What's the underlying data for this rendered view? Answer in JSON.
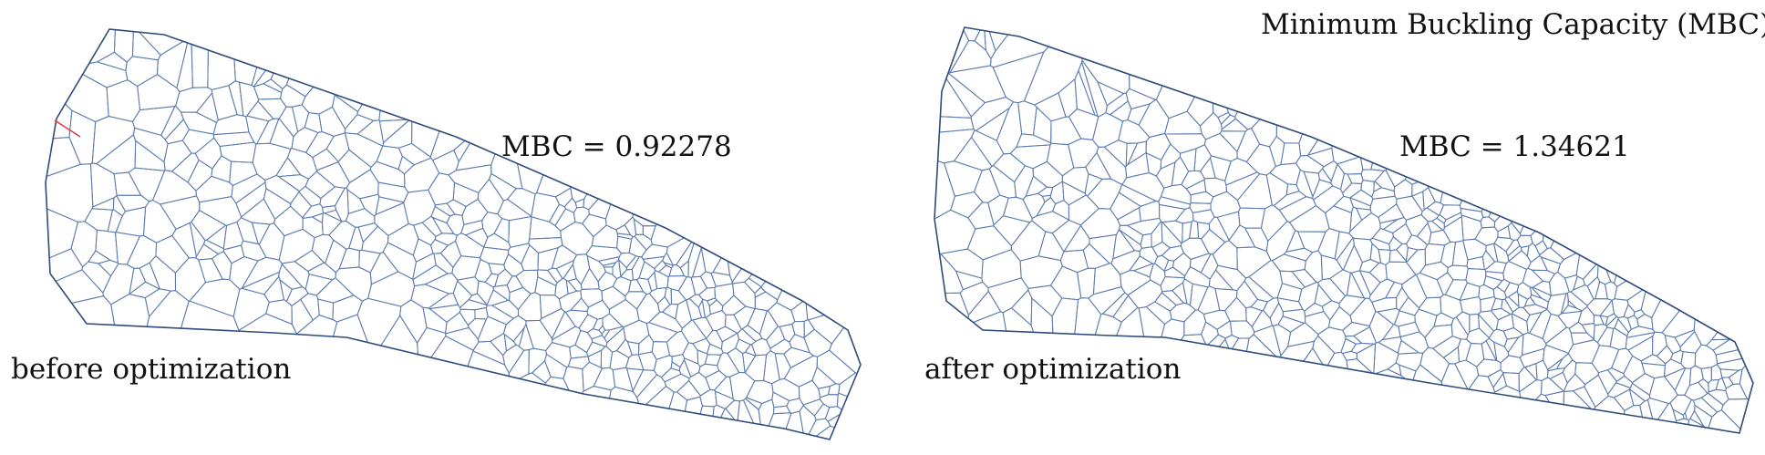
{
  "figure": {
    "title": "Minimum Buckling Capacity (MBC)",
    "colors": {
      "mesh": "#5b7bb0",
      "outline": "#2f4c7d",
      "highlight": "#e23b3b",
      "background": "#ffffff"
    }
  },
  "panels": [
    {
      "caption": "before optimization",
      "mbc_label": "MBC = 0.92278",
      "mbc_value": 0.92278
    },
    {
      "caption": "after optimization",
      "mbc_label": "MBC = 1.34621",
      "mbc_value": 1.34621
    }
  ]
}
